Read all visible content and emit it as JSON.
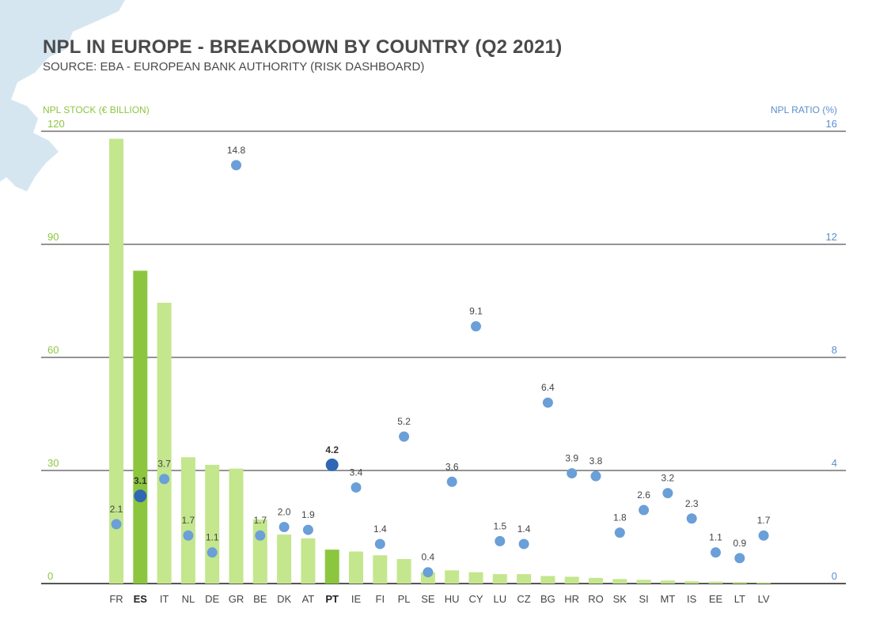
{
  "header": {
    "title": "NPL IN EUROPE - BREAKDOWN BY COUNTRY (Q2 2021)",
    "subtitle": "SOURCE: EBA - EUROPEAN BANK AUTHORITY (RISK DASHBOARD)"
  },
  "colors": {
    "bar": "#c4e68d",
    "bar_highlight": "#8cc63f",
    "dot": "#6a9fd8",
    "dot_highlight": "#2f67b3",
    "left_axis": "#8cc63f",
    "right_axis": "#5b8fcc",
    "gridline": "#555555",
    "decor_blob": "#d5e6f1"
  },
  "chart_data": {
    "type": "bar",
    "combo": "bar + scatter (dual axis)",
    "left_axis_label": "NPL STOCK (€ BILLION)",
    "right_axis_label": "NPL RATIO (%)",
    "ylim_left": [
      0,
      120
    ],
    "ylim_right": [
      0,
      16
    ],
    "yticks_left": [
      "0",
      "30",
      "60",
      "90",
      "120"
    ],
    "yticks_right": [
      "0",
      "4",
      "8",
      "12",
      "16"
    ],
    "grid": true,
    "categories": [
      "FR",
      "ES",
      "IT",
      "NL",
      "DE",
      "GR",
      "BE",
      "DK",
      "AT",
      "PT",
      "IE",
      "FI",
      "PL",
      "SE",
      "HU",
      "CY",
      "LU",
      "CZ",
      "BG",
      "HR",
      "RO",
      "SK",
      "SI",
      "MT",
      "IS",
      "EE",
      "LT",
      "LV"
    ],
    "highlighted": [
      "ES",
      "PT"
    ],
    "series": [
      {
        "name": "NPL STOCK (€ BILLION)",
        "kind": "bar",
        "axis": "left",
        "values": [
          118,
          83,
          74.5,
          33.5,
          31.5,
          30.5,
          17,
          13,
          12,
          9,
          8.5,
          7.5,
          6.5,
          3,
          3.5,
          3,
          2.5,
          2.5,
          2,
          1.8,
          1.5,
          1.2,
          1,
          0.8,
          0.6,
          0.5,
          0.4,
          0.3
        ]
      },
      {
        "name": "NPL RATIO (%)",
        "kind": "scatter",
        "axis": "right",
        "values": [
          2.1,
          3.1,
          3.7,
          1.7,
          1.1,
          14.8,
          1.7,
          2.0,
          1.9,
          4.2,
          3.4,
          1.4,
          5.2,
          0.4,
          3.6,
          9.1,
          1.5,
          1.4,
          6.4,
          3.9,
          3.8,
          1.8,
          2.6,
          3.2,
          2.3,
          1.1,
          0.9,
          1.7
        ],
        "labels": [
          "2.1",
          "3.1",
          "3.7",
          "1.7",
          "1.1",
          "14.8",
          "1.7",
          "2.0",
          "1.9",
          "4.2",
          "3.4",
          "1.4",
          "5.2",
          "0.4",
          "3.6",
          "9.1",
          "1.5",
          "1.4",
          "6.4",
          "3.9",
          "3.8",
          "1.8",
          "2.6",
          "3.2",
          "2.3",
          "1.1",
          "0.9",
          "1.7"
        ]
      }
    ]
  }
}
